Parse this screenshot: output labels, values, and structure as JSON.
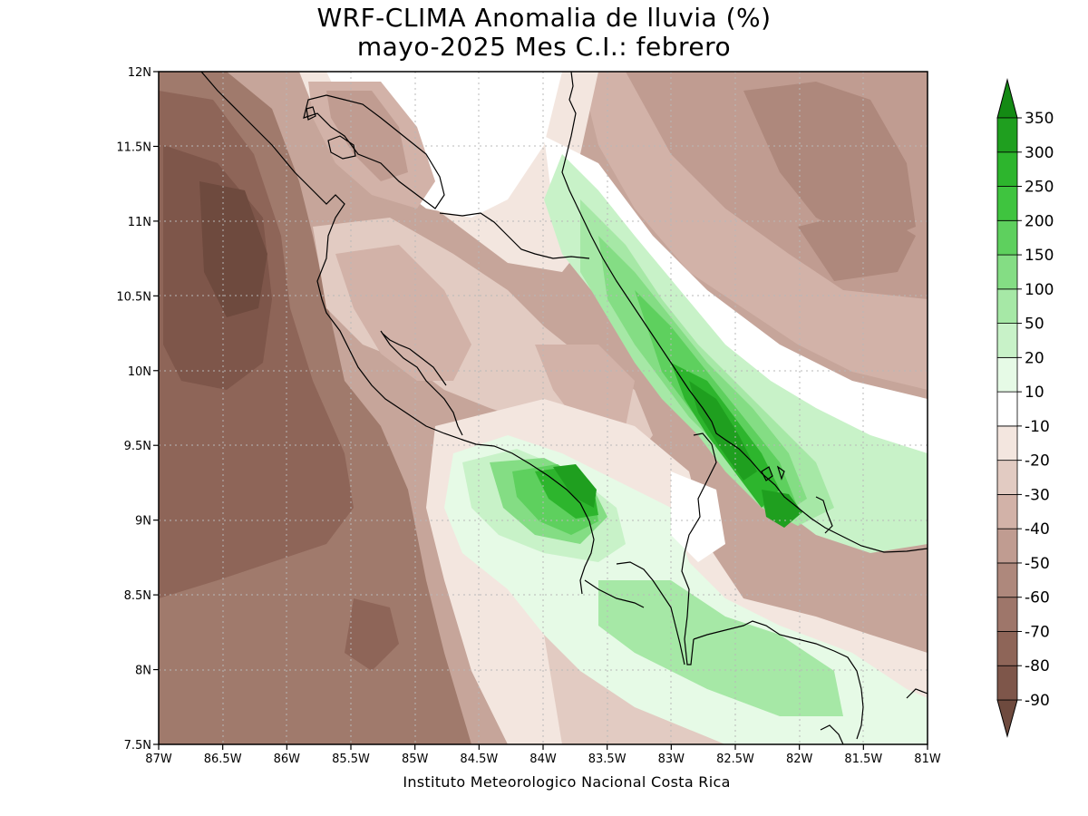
{
  "title": {
    "line1": "WRF-CLIMA Anomalia de lluvia (%)",
    "line2": "mayo-2025 Mes C.I.: febrero"
  },
  "map": {
    "lon_ticks": [
      "87W",
      "86.5W",
      "86W",
      "85.5W",
      "85W",
      "84.5W",
      "84W",
      "83.5W",
      "83W",
      "82.5W",
      "82W",
      "81.5W",
      "81W"
    ],
    "lat_ticks": [
      "12N",
      "11.5N",
      "11N",
      "10.5N",
      "10N",
      "9.5N",
      "9N",
      "8.5N",
      "8N",
      "7.5N"
    ],
    "lon_range": [
      -87,
      -81
    ],
    "lat_range": [
      7.5,
      12
    ]
  },
  "colorbar": {
    "levels": [
      "-90",
      "-80",
      "-70",
      "-60",
      "-50",
      "-40",
      "-30",
      "-20",
      "-10",
      "10",
      "20",
      "50",
      "100",
      "150",
      "200",
      "250",
      "300",
      "350"
    ],
    "colors": [
      "#6e4a3e",
      "#7e564a",
      "#8e6558",
      "#9e766a",
      "#ae887c",
      "#c09c91",
      "#d2b2a8",
      "#e2cbc2",
      "#f3e6df",
      "#ffffff",
      "#e6fae6",
      "#c8f2c8",
      "#a6e8a6",
      "#84dd84",
      "#5ed05e",
      "#3fc43f",
      "#2db52d",
      "#1f9f1f",
      "#148a14"
    ],
    "brown_base": "#a07a6c",
    "green_accent": "#1f9f1f"
  },
  "credit": "Instituto Meteorologico Nacional Costa Rica"
}
